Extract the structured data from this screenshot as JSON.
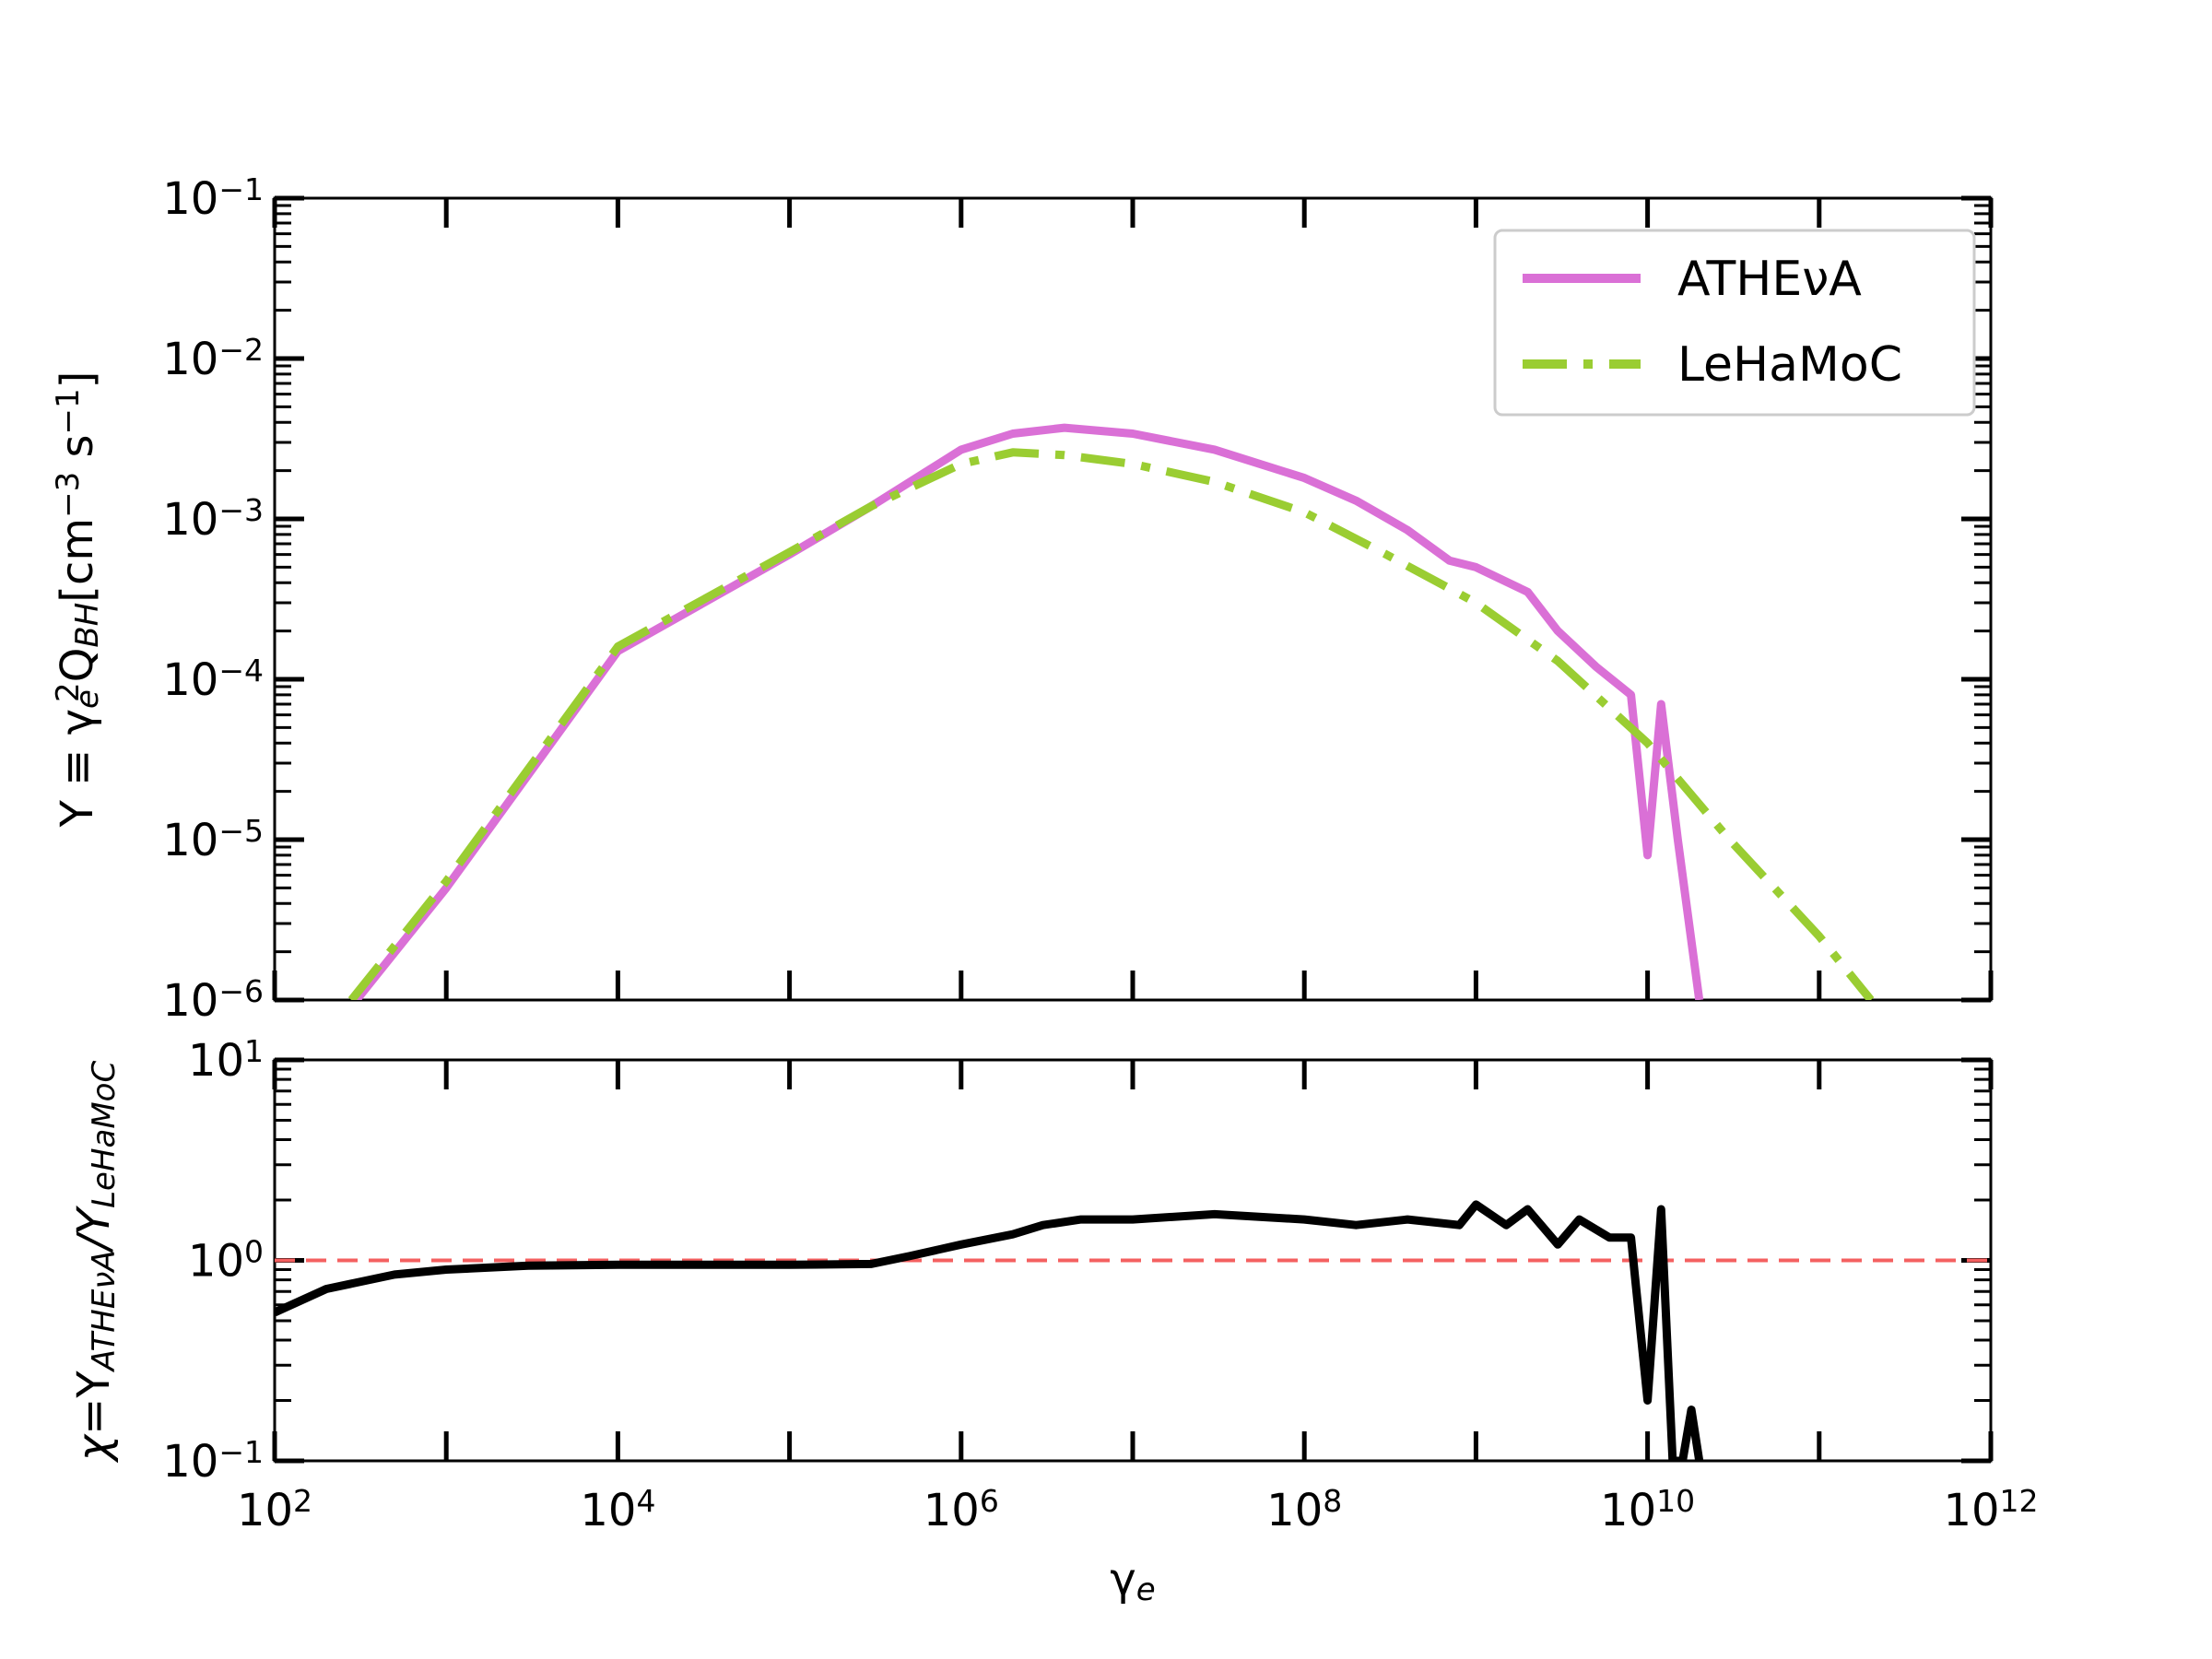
{
  "chart_data": [
    {
      "type": "line",
      "panel": "top",
      "ylabel": "Y ≡ γe²QBH[cm⁻³ s⁻¹]",
      "xlabel": "",
      "xscale": "log",
      "yscale": "log",
      "xlim": [
        100,
        1000000000000.0
      ],
      "ylim": [
        1e-06,
        0.1
      ],
      "legend_position": "upper-right",
      "series": [
        {
          "name": "ATHEνA",
          "color": "#DA70D6",
          "style": "solid",
          "x": [
            300,
            1000,
            10000,
            100000,
            300000,
            1000000,
            2000000,
            4000000,
            10000000,
            30000000,
            100000000,
            200000000,
            400000000,
            700000000,
            1000000000,
            2000000000,
            3000000000,
            5000000000,
            8000000000,
            10000000000,
            12000000000,
            15000000000,
            20000000000
          ],
          "y": [
            1e-06,
            5e-06,
            0.00015,
            0.0006,
            0.0012,
            0.0027,
            0.0034,
            0.0037,
            0.0034,
            0.0027,
            0.0018,
            0.0013,
            0.00085,
            0.00055,
            0.0005,
            0.00035,
            0.0002,
            0.00012,
            8e-05,
            8e-06,
            7e-05,
            1e-05,
            1e-06
          ]
        },
        {
          "name": "LeHaMoC",
          "color": "#9ACD32",
          "style": "dashdot",
          "x": [
            280,
            1000,
            10000,
            100000,
            300000,
            1000000,
            2000000,
            4000000,
            10000000,
            30000000,
            100000000,
            300000000,
            1000000000,
            3000000000,
            10000000000,
            30000000000,
            100000000000,
            200000000000
          ],
          "y": [
            1e-06,
            5.5e-06,
            0.00016,
            0.00062,
            0.0012,
            0.0022,
            0.0026,
            0.0025,
            0.0022,
            0.0017,
            0.0011,
            0.0006,
            0.0003,
            0.00013,
            4e-05,
            1e-05,
            2.5e-06,
            1e-06
          ]
        }
      ]
    },
    {
      "type": "line",
      "panel": "bottom",
      "ylabel": "χ=YATHEνA/YLeHaMoC",
      "xlabel": "γe",
      "xscale": "log",
      "yscale": "log",
      "xlim": [
        100,
        1000000000000.0
      ],
      "ylim": [
        0.1,
        10
      ],
      "reference_line": {
        "y": 1,
        "color": "#F46060",
        "style": "dashed"
      },
      "series": [
        {
          "color": "#000000",
          "style": "solid",
          "x": [
            100,
            200,
            500,
            1000,
            3000,
            10000,
            100000,
            300000,
            500000,
            1000000,
            2000000,
            3000000,
            5000000,
            10000000,
            30000000,
            100000000,
            200000000,
            400000000,
            800000000,
            1000000000,
            1500000000,
            2000000000,
            3000000000,
            4000000000,
            6000000000,
            8000000000,
            10000000000,
            12000000000,
            14000000000,
            16000000000,
            18000000000,
            20000000000
          ],
          "y": [
            0.55,
            0.72,
            0.85,
            0.9,
            0.94,
            0.95,
            0.95,
            0.96,
            1.05,
            1.2,
            1.35,
            1.5,
            1.6,
            1.6,
            1.7,
            1.6,
            1.5,
            1.6,
            1.5,
            1.9,
            1.5,
            1.8,
            1.2,
            1.6,
            1.3,
            1.3,
            0.2,
            1.8,
            0.1,
            0.1,
            0.18,
            0.1
          ]
        }
      ]
    }
  ]
}
